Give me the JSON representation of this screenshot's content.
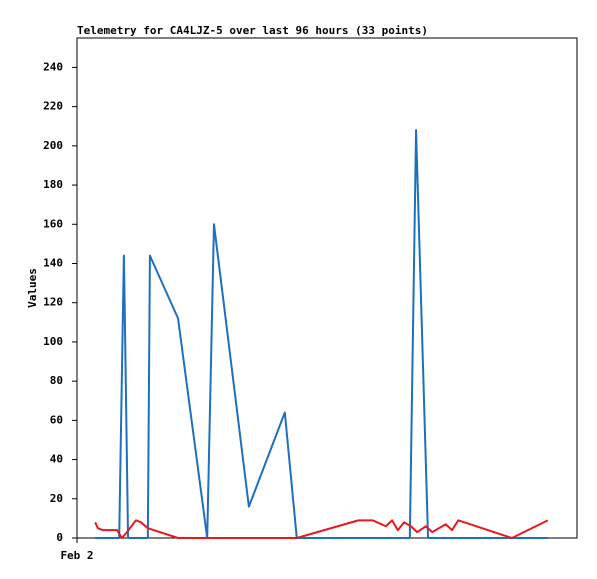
{
  "chart_data": {
    "type": "line",
    "title": "Telemetry for CA4LJZ-5 over last 96 hours (33 points)",
    "y_label": "Values",
    "xlim": [
      0,
      96
    ],
    "xticks": [
      {
        "value": 0,
        "label": "Feb 2"
      }
    ],
    "ylim": [
      0,
      255
    ],
    "yticks": [
      0,
      20,
      40,
      60,
      80,
      100,
      120,
      140,
      160,
      180,
      200,
      220,
      240
    ],
    "series": [
      {
        "color": "#1f6fbf",
        "x": [
          3.5,
          8.1,
          9.0,
          9.2,
          9.8,
          13.6,
          14.0,
          19.4,
          25.0,
          26.3,
          33.0,
          39.9,
          42.2,
          63.9,
          65.1,
          67.4,
          90.4
        ],
        "values": [
          0,
          0,
          144,
          110,
          0,
          0,
          144,
          112,
          0,
          160,
          16,
          64,
          0,
          0,
          208,
          0,
          0
        ]
      },
      {
        "color": "#e8191c",
        "x": [
          3.5,
          4.0,
          5.0,
          7.7,
          8.6,
          9.6,
          11.3,
          12.3,
          13.6,
          19.4,
          42.2,
          54.0,
          56.8,
          59.3,
          60.5,
          61.6,
          62.8,
          64.1,
          65.3,
          67.0,
          68.2,
          70.8,
          72.0,
          73.2,
          83.5,
          90.4
        ],
        "values": [
          8,
          5,
          4,
          4,
          0,
          3,
          9,
          8,
          5,
          0,
          0,
          9,
          9,
          6,
          9,
          4,
          8,
          6,
          3,
          6,
          3,
          7,
          4,
          9,
          0,
          9
        ]
      }
    ]
  }
}
